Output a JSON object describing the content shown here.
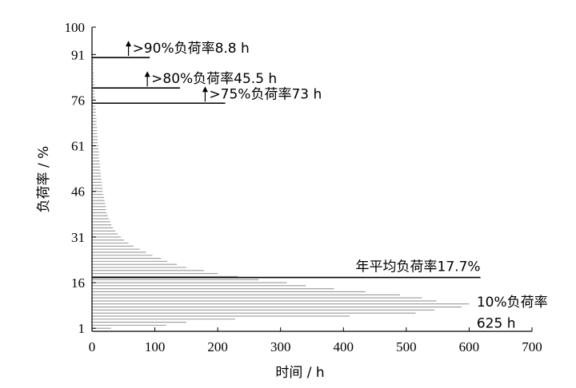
{
  "chart_data": {
    "type": "bar",
    "orientation": "horizontal",
    "xlabel": "时间 / h",
    "ylabel": "负荷率 / %",
    "xlim": [
      0,
      700
    ],
    "ylim": [
      0,
      100
    ],
    "x_ticks": [
      0,
      100,
      200,
      300,
      400,
      500,
      600,
      700
    ],
    "y_ticks": [
      1,
      16,
      31,
      46,
      61,
      76,
      91,
      100
    ],
    "grid": false,
    "bars": {
      "load_rate": [
        1,
        2,
        3,
        4,
        5,
        6,
        7,
        8,
        9,
        10,
        11,
        12,
        13,
        14,
        15,
        16,
        17,
        18,
        19,
        20,
        21,
        22,
        23,
        24,
        25,
        26,
        27,
        28,
        29,
        30,
        31,
        32,
        33,
        34,
        35,
        36,
        37,
        38,
        39,
        40,
        41,
        42,
        43,
        44,
        45,
        46,
        47,
        48,
        49,
        50,
        51,
        52,
        53,
        54,
        55,
        56,
        57,
        58,
        59,
        60,
        61,
        62,
        63,
        64,
        65,
        66,
        67,
        68,
        69,
        70,
        71,
        72,
        73,
        74,
        75,
        76,
        77,
        78,
        79,
        80,
        81,
        82,
        83,
        84,
        85,
        86,
        87,
        88,
        89,
        90,
        91,
        92
      ],
      "hours": [
        30,
        118,
        150,
        228,
        410,
        515,
        545,
        588,
        600,
        548,
        525,
        490,
        435,
        385,
        340,
        310,
        265,
        232,
        200,
        178,
        150,
        135,
        120,
        110,
        96,
        86,
        76,
        66,
        58,
        51,
        46,
        41,
        37,
        33,
        31,
        29,
        27,
        25,
        23,
        22,
        22,
        21,
        20,
        19,
        18,
        17,
        17,
        16,
        16,
        15,
        14,
        14,
        13,
        13,
        12,
        12,
        11,
        11,
        11,
        10,
        10,
        9,
        9,
        9,
        8,
        8,
        8,
        7,
        7,
        7,
        6,
        6,
        6,
        5,
        5,
        5,
        5,
        4,
        4,
        4,
        4,
        3,
        3,
        3,
        3,
        2,
        2,
        2,
        2,
        2,
        2,
        1
      ]
    },
    "markers": [
      {
        "name": "year-average",
        "load_rate": 17.7,
        "hours_end": 618,
        "label": "年平均负荷率17.7%"
      },
      {
        "name": "above-75",
        "load_rate": 75,
        "hours_end": 212,
        "arrow_x": 180,
        "label": ">75%负荷率73 h"
      },
      {
        "name": "above-80",
        "load_rate": 80,
        "hours_end": 140,
        "arrow_x": 88,
        "label": ">80%负荷率45.5 h"
      },
      {
        "name": "above-90",
        "load_rate": 90,
        "hours_end": 92,
        "arrow_x": 58,
        "label": ">90%负荷率8.8 h"
      }
    ],
    "annotations": [
      {
        "name": "ten-percent",
        "label": "10%负荷率"
      },
      {
        "name": "ten-percent-hours",
        "label": "625 h"
      }
    ],
    "colors": {
      "bars": "#9a9a9a",
      "markers": "#000000"
    }
  }
}
